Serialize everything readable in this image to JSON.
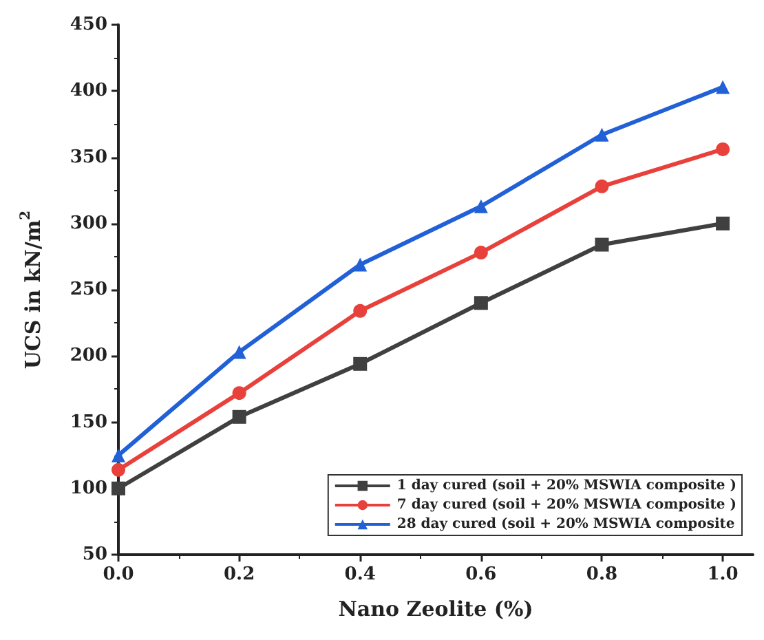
{
  "chart_data": {
    "type": "line",
    "x": [
      0,
      0.2,
      0.4,
      0.6,
      0.8,
      1.0
    ],
    "xlabel": "Nano Zeolite (%)",
    "ylabel": "UCS in kN/m$^{2}$",
    "xlim": [
      0,
      1.05
    ],
    "xticks": [
      {
        "value": 0,
        "label": "0.0"
      },
      0.2,
      0.4,
      0.6,
      0.8,
      {
        "value": 1.0,
        "label": "1.0"
      }
    ],
    "ylim": [
      50,
      450
    ],
    "yticks": [
      50,
      100,
      150,
      200,
      250,
      300,
      350,
      400,
      450
    ],
    "series": [
      {
        "name": "1 day cured (soil + 20% MSWIA composite )",
        "color": "#404040",
        "marker": "square",
        "values": [
          100,
          154,
          194,
          240,
          284,
          300
        ]
      },
      {
        "name": "7 day cured (soil + 20% MSWIA composite )",
        "color": "#e8413c",
        "marker": "circle",
        "values": [
          114,
          172,
          234,
          278,
          328,
          356
        ]
      },
      {
        "name": "28 day cured (soil + 20% MSWIA composite",
        "color": "#2160d6",
        "marker": "triangle",
        "values": [
          125,
          203,
          269,
          313,
          367,
          403
        ]
      }
    ],
    "legend": "bottom right",
    "grid": false,
    "line_style": "solid"
  }
}
